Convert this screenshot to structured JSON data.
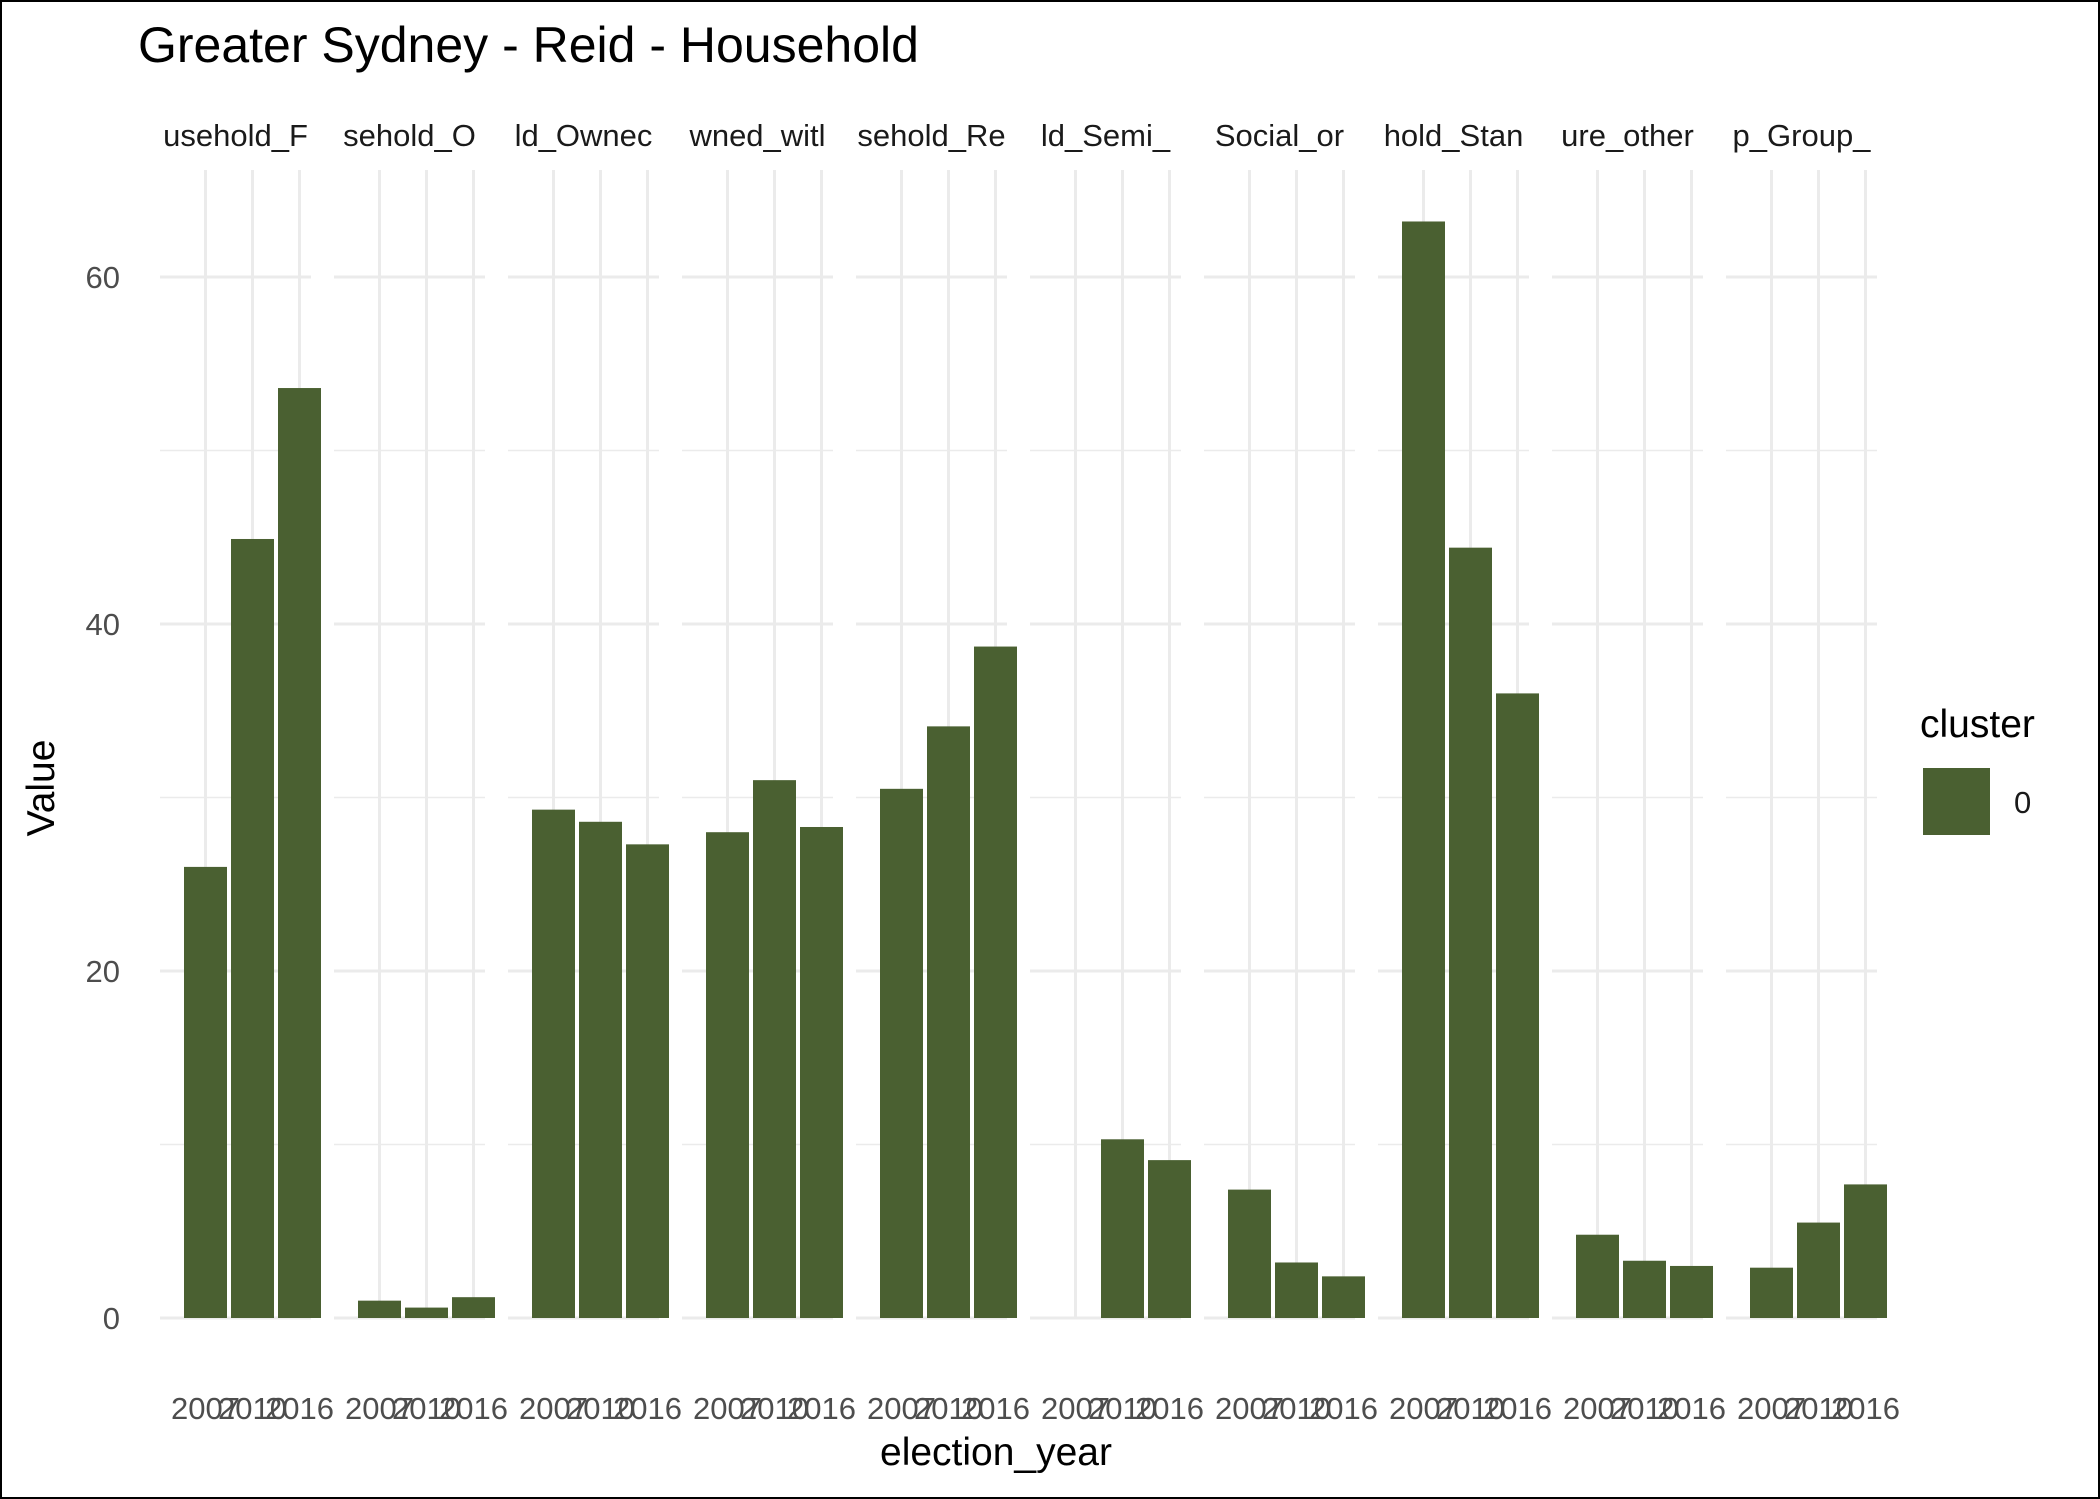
{
  "chart_data": {
    "type": "bar",
    "title": "Greater Sydney - Reid - Household",
    "xlabel": "election_year",
    "ylabel": "Value",
    "ylim": [
      0,
      66
    ],
    "yticks": [
      0,
      20,
      40,
      60
    ],
    "grid": true,
    "legend_position": "right",
    "legend": {
      "title": "cluster",
      "entries": [
        {
          "label": "0",
          "color": "#4a6031"
        }
      ]
    },
    "x_categories": [
      "2007",
      "2010",
      "2016"
    ],
    "facets": [
      {
        "label": "usehold_F",
        "values": [
          26.0,
          44.9,
          53.6
        ]
      },
      {
        "label": "sehold_O",
        "values": [
          1.0,
          0.6,
          1.2
        ]
      },
      {
        "label": "ld_Ownec",
        "values": [
          29.3,
          28.6,
          27.3
        ]
      },
      {
        "label": "wned_witl",
        "values": [
          28.0,
          31.0,
          28.3
        ]
      },
      {
        "label": "sehold_Re",
        "values": [
          30.5,
          34.1,
          38.7
        ]
      },
      {
        "label": "ld_Semi_",
        "values": [
          null,
          10.3,
          9.1
        ]
      },
      {
        "label": "Social_or",
        "values": [
          7.4,
          3.2,
          2.4
        ]
      },
      {
        "label": "hold_Stan",
        "values": [
          63.2,
          44.4,
          36.0
        ]
      },
      {
        "label": "ure_other",
        "values": [
          4.8,
          3.3,
          3.0
        ]
      },
      {
        "label": "p_Group_",
        "values": [
          2.9,
          5.5,
          7.7
        ]
      }
    ]
  },
  "colors": {
    "bar": "#4a6031",
    "grid": "#ebebeb",
    "tick_text": "#4d4d4d"
  }
}
